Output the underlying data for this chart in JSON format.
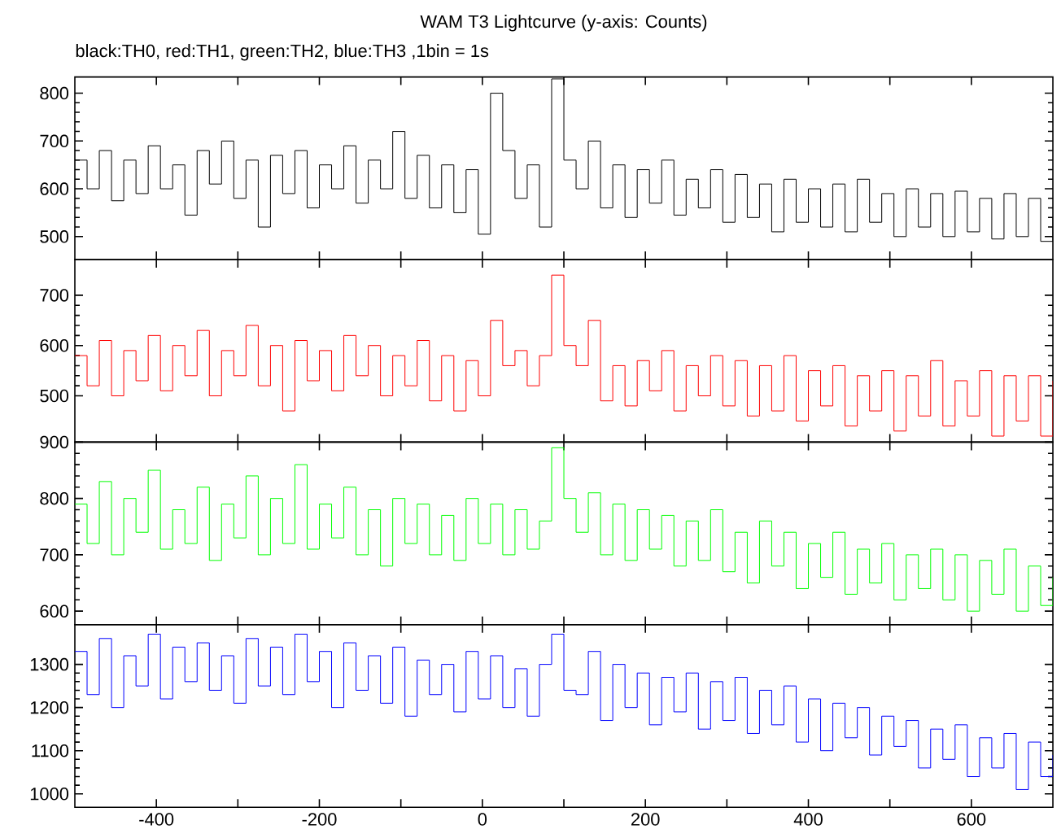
{
  "chart_data": [
    {
      "type": "step",
      "title": "WAM T3 Lightcurve (y-axis: Counts)",
      "subtitle": "black:TH0, red:TH1, green:TH2, blue:TH3 ,1bin = 1s",
      "color": "#000000",
      "tick_labels": "y",
      "xlim": [
        -500,
        700
      ],
      "ylim": [
        452,
        834
      ],
      "xticks": [
        -400,
        {
          "value": -300,
          "label": null
        },
        -200,
        {
          "value": -100,
          "label": null
        },
        0,
        {
          "value": 100,
          "label": null
        },
        200,
        {
          "value": 300,
          "label": null
        },
        400,
        {
          "value": 500,
          "label": null
        },
        600
      ],
      "yticks": [
        500,
        600,
        700,
        800
      ],
      "x": [
        -500,
        -485,
        -470,
        -455,
        -440,
        -425,
        -410,
        -395,
        -380,
        -365,
        -350,
        -335,
        -320,
        -305,
        -290,
        -275,
        -260,
        -245,
        -230,
        -215,
        -200,
        -185,
        -170,
        -155,
        -140,
        -125,
        -110,
        -95,
        -80,
        -65,
        -50,
        -35,
        -20,
        -5,
        10,
        25,
        40,
        55,
        70,
        85,
        100,
        115,
        130,
        145,
        160,
        175,
        190,
        205,
        220,
        235,
        250,
        265,
        280,
        295,
        310,
        325,
        340,
        355,
        370,
        385,
        400,
        415,
        430,
        445,
        460,
        475,
        490,
        505,
        520,
        535,
        550,
        565,
        580,
        595,
        610,
        625,
        640,
        655,
        670,
        685,
        700
      ],
      "values": [
        660,
        600,
        680,
        575,
        660,
        590,
        690,
        600,
        650,
        545,
        680,
        610,
        700,
        580,
        660,
        520,
        670,
        590,
        680,
        560,
        650,
        600,
        690,
        570,
        660,
        600,
        720,
        580,
        670,
        560,
        650,
        550,
        640,
        505,
        800,
        680,
        580,
        650,
        520,
        830,
        660,
        600,
        700,
        560,
        650,
        540,
        640,
        570,
        660,
        545,
        620,
        560,
        640,
        530,
        630,
        540,
        610,
        510,
        620,
        530,
        600,
        520,
        610,
        510,
        620,
        530,
        590,
        500,
        600,
        520,
        590,
        500,
        595,
        510,
        580,
        495,
        590,
        500,
        580,
        490,
        540
      ]
    },
    {
      "type": "step",
      "color": "#ff0000",
      "tick_labels": "y",
      "xlim": [
        -500,
        700
      ],
      "ylim": [
        408,
        771
      ],
      "xticks": [
        -400,
        {
          "value": -300,
          "label": null
        },
        -200,
        {
          "value": -100,
          "label": null
        },
        0,
        {
          "value": 100,
          "label": null
        },
        200,
        {
          "value": 300,
          "label": null
        },
        400,
        {
          "value": 500,
          "label": null
        },
        600
      ],
      "yticks": [
        500,
        600,
        700
      ],
      "x": [
        -500,
        -485,
        -470,
        -455,
        -440,
        -425,
        -410,
        -395,
        -380,
        -365,
        -350,
        -335,
        -320,
        -305,
        -290,
        -275,
        -260,
        -245,
        -230,
        -215,
        -200,
        -185,
        -170,
        -155,
        -140,
        -125,
        -110,
        -95,
        -80,
        -65,
        -50,
        -35,
        -20,
        -5,
        10,
        25,
        40,
        55,
        70,
        85,
        100,
        115,
        130,
        145,
        160,
        175,
        190,
        205,
        220,
        235,
        250,
        265,
        280,
        295,
        310,
        325,
        340,
        355,
        370,
        385,
        400,
        415,
        430,
        445,
        460,
        475,
        490,
        505,
        520,
        535,
        550,
        565,
        580,
        595,
        610,
        625,
        640,
        655,
        670,
        685,
        700
      ],
      "values": [
        580,
        520,
        610,
        500,
        590,
        530,
        620,
        510,
        600,
        540,
        630,
        500,
        590,
        540,
        640,
        520,
        600,
        470,
        610,
        530,
        590,
        510,
        620,
        540,
        600,
        500,
        580,
        520,
        610,
        490,
        580,
        470,
        570,
        500,
        650,
        560,
        590,
        520,
        580,
        740,
        600,
        560,
        650,
        490,
        560,
        480,
        570,
        510,
        590,
        470,
        560,
        500,
        580,
        480,
        570,
        460,
        560,
        470,
        580,
        450,
        550,
        480,
        560,
        440,
        540,
        470,
        550,
        430,
        540,
        460,
        570,
        440,
        530,
        460,
        550,
        420,
        540,
        450,
        540,
        420,
        530
      ]
    },
    {
      "type": "step",
      "color": "#00ff00",
      "tick_labels": "y",
      "xlim": [
        -500,
        700
      ],
      "ylim": [
        576,
        900
      ],
      "xticks": [
        -400,
        {
          "value": -300,
          "label": null
        },
        -200,
        {
          "value": -100,
          "label": null
        },
        0,
        {
          "value": 100,
          "label": null
        },
        200,
        {
          "value": 300,
          "label": null
        },
        400,
        {
          "value": 500,
          "label": null
        },
        600
      ],
      "yticks": [
        600,
        700,
        800,
        900
      ],
      "x": [
        -500,
        -485,
        -470,
        -455,
        -440,
        -425,
        -410,
        -395,
        -380,
        -365,
        -350,
        -335,
        -320,
        -305,
        -290,
        -275,
        -260,
        -245,
        -230,
        -215,
        -200,
        -185,
        -170,
        -155,
        -140,
        -125,
        -110,
        -95,
        -80,
        -65,
        -50,
        -35,
        -20,
        -5,
        10,
        25,
        40,
        55,
        70,
        85,
        100,
        115,
        130,
        145,
        160,
        175,
        190,
        205,
        220,
        235,
        250,
        265,
        280,
        295,
        310,
        325,
        340,
        355,
        370,
        385,
        400,
        415,
        430,
        445,
        460,
        475,
        490,
        505,
        520,
        535,
        550,
        565,
        580,
        595,
        610,
        625,
        640,
        655,
        670,
        685,
        700
      ],
      "values": [
        790,
        720,
        830,
        700,
        800,
        740,
        850,
        710,
        780,
        720,
        820,
        690,
        790,
        730,
        840,
        700,
        800,
        720,
        860,
        710,
        790,
        730,
        820,
        700,
        780,
        680,
        800,
        720,
        790,
        700,
        770,
        690,
        800,
        720,
        790,
        700,
        780,
        710,
        760,
        890,
        800,
        740,
        810,
        700,
        790,
        690,
        780,
        710,
        770,
        680,
        760,
        690,
        780,
        670,
        740,
        650,
        760,
        680,
        740,
        640,
        720,
        660,
        740,
        630,
        710,
        650,
        720,
        620,
        700,
        640,
        710,
        620,
        700,
        600,
        690,
        630,
        710,
        600,
        680,
        610,
        660
      ]
    },
    {
      "type": "step",
      "color": "#0000ff",
      "xlim": [
        -500,
        700
      ],
      "ylim": [
        969,
        1392
      ],
      "xticks": [
        -400,
        {
          "value": -300,
          "label": null
        },
        -200,
        {
          "value": -100,
          "label": null
        },
        0,
        {
          "value": 100,
          "label": null
        },
        200,
        {
          "value": 300,
          "label": null
        },
        400,
        {
          "value": 500,
          "label": null
        },
        600
      ],
      "yticks": [
        1000,
        1100,
        1200,
        1300
      ],
      "x": [
        -500,
        -485,
        -470,
        -455,
        -440,
        -425,
        -410,
        -395,
        -380,
        -365,
        -350,
        -335,
        -320,
        -305,
        -290,
        -275,
        -260,
        -245,
        -230,
        -215,
        -200,
        -185,
        -170,
        -155,
        -140,
        -125,
        -110,
        -95,
        -80,
        -65,
        -50,
        -35,
        -20,
        -5,
        10,
        25,
        40,
        55,
        70,
        85,
        100,
        115,
        130,
        145,
        160,
        175,
        190,
        205,
        220,
        235,
        250,
        265,
        280,
        295,
        310,
        325,
        340,
        355,
        370,
        385,
        400,
        415,
        430,
        445,
        460,
        475,
        490,
        505,
        520,
        535,
        550,
        565,
        580,
        595,
        610,
        625,
        640,
        655,
        670,
        685,
        700
      ],
      "values": [
        1330,
        1230,
        1360,
        1200,
        1320,
        1250,
        1370,
        1220,
        1340,
        1260,
        1350,
        1240,
        1320,
        1210,
        1360,
        1250,
        1340,
        1230,
        1370,
        1260,
        1330,
        1200,
        1350,
        1240,
        1320,
        1210,
        1340,
        1180,
        1310,
        1230,
        1300,
        1190,
        1330,
        1220,
        1320,
        1200,
        1290,
        1180,
        1300,
        1370,
        1240,
        1230,
        1330,
        1170,
        1300,
        1200,
        1280,
        1160,
        1270,
        1190,
        1280,
        1150,
        1260,
        1170,
        1270,
        1140,
        1240,
        1160,
        1250,
        1120,
        1220,
        1100,
        1210,
        1130,
        1200,
        1090,
        1180,
        1110,
        1170,
        1060,
        1150,
        1080,
        1160,
        1040,
        1130,
        1060,
        1140,
        1010,
        1120,
        1040,
        1090
      ]
    }
  ]
}
